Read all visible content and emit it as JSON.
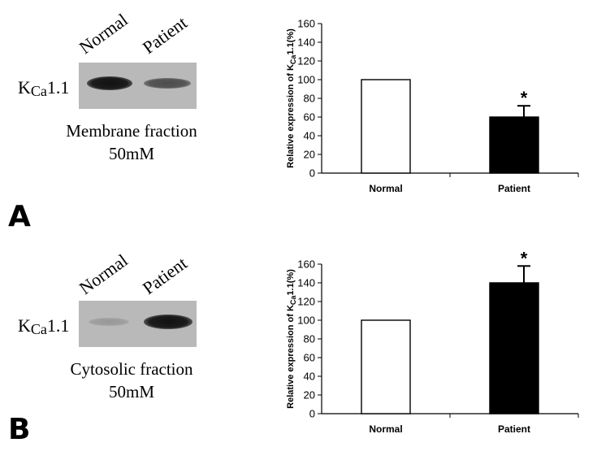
{
  "panels": [
    {
      "id": "A",
      "letter": "A",
      "lanes": [
        "Normal",
        "Patient"
      ],
      "protein": {
        "main": "K",
        "sub": "Ca",
        "suffix": "1.1"
      },
      "fraction": "Membrane fraction",
      "concentration": "50mM",
      "band_intensity": {
        "normal": 0.95,
        "patient": 0.6
      }
    },
    {
      "id": "B",
      "letter": "B",
      "lanes": [
        "Normal",
        "Patient"
      ],
      "protein": {
        "main": "K",
        "sub": "Ca",
        "suffix": "1.1"
      },
      "fraction": "Cytosolic fraction",
      "concentration": "50mM",
      "band_intensity": {
        "normal": 0.15,
        "patient": 0.95
      }
    }
  ],
  "chart_data": [
    {
      "type": "bar",
      "categories": [
        "Normal",
        "Patient"
      ],
      "values": [
        100,
        60
      ],
      "errors": [
        0,
        12
      ],
      "significance": [
        "",
        "*"
      ],
      "bar_colors": [
        "#ffffff",
        "#000000"
      ],
      "ylabel": "Relative expression of KCa1.1(%)",
      "ylabel_parts": {
        "pre": "Relative expression of K",
        "sub": "Ca",
        "post": "1.1(%)"
      },
      "ylim": [
        0,
        160
      ],
      "yticks": [
        0,
        20,
        40,
        60,
        80,
        100,
        120,
        140,
        160
      ],
      "grid": false
    },
    {
      "type": "bar",
      "categories": [
        "Normal",
        "Patient"
      ],
      "values": [
        100,
        140
      ],
      "errors": [
        0,
        18
      ],
      "significance": [
        "",
        "*"
      ],
      "bar_colors": [
        "#ffffff",
        "#000000"
      ],
      "ylabel": "Relative expression of KCa1.1(%)",
      "ylabel_parts": {
        "pre": "Relative expression of K",
        "sub": "Ca",
        "post": "1.1(%)"
      },
      "ylim": [
        0,
        160
      ],
      "yticks": [
        0,
        20,
        40,
        60,
        80,
        100,
        120,
        140,
        160
      ],
      "grid": false
    }
  ]
}
